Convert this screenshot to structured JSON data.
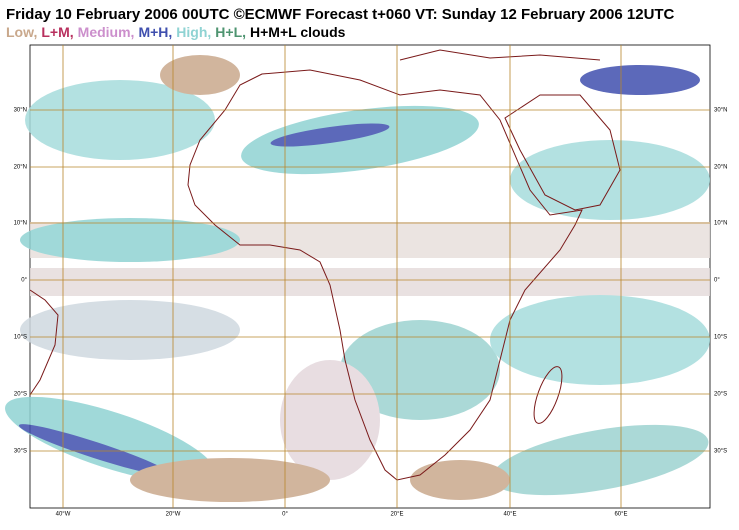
{
  "header": {
    "title": "Friday 10 February 2006 00UTC ©ECMWF Forecast t+060 VT: Sunday 12 February 2006 12UTC"
  },
  "legend": {
    "items": [
      {
        "label": "Low,",
        "color": "#c9a88c"
      },
      {
        "label": "L+M,",
        "color": "#b8305e"
      },
      {
        "label": "Medium,",
        "color": "#cc8fcc"
      },
      {
        "label": "M+H,",
        "color": "#3f4fae"
      },
      {
        "label": "High,",
        "color": "#8fd3d3"
      },
      {
        "label": "H+L,",
        "color": "#4e9470"
      },
      {
        "label": "H+M+L clouds",
        "color": "#000000"
      }
    ]
  },
  "map": {
    "lon_labels": [
      "40°W",
      "20°W",
      "0°",
      "20°E",
      "40°E",
      "60°E"
    ],
    "lat_labels": [
      "30°N",
      "20°N",
      "10°N",
      "0°",
      "10°S",
      "20°S",
      "30°S"
    ]
  }
}
